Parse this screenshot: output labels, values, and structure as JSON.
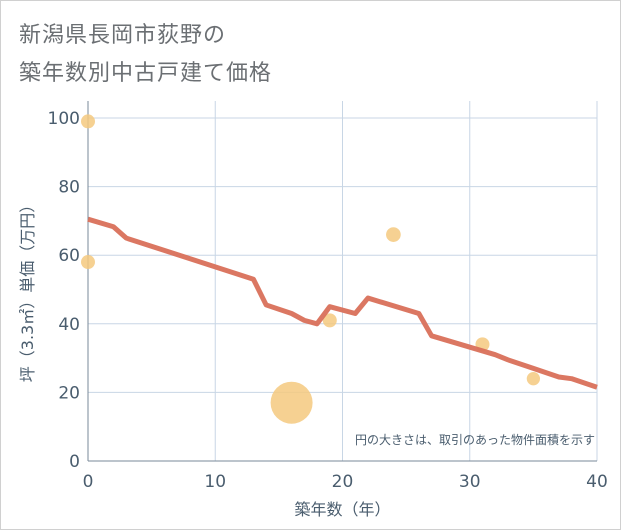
{
  "chart_data": {
    "type": "scatter",
    "title": [
      "新潟県長岡市荻野の",
      "築年数別中古戸建て価格"
    ],
    "xlabel": "築年数（年）",
    "ylabel": "坪（3.3㎡）単価（万円）",
    "xlim": [
      0,
      40
    ],
    "ylim": [
      0,
      100
    ],
    "xticks": [
      0,
      10,
      20,
      30,
      40
    ],
    "yticks": [
      0,
      20,
      40,
      60,
      80,
      100
    ],
    "grid": true,
    "annotation": "円の大きさは、取引のあった物件面積を示す",
    "colors": {
      "line": "#d9705a",
      "points": "#f5c97f",
      "grid": "#c8d6e5"
    },
    "series": [
      {
        "name": "trend",
        "kind": "line",
        "x": [
          0,
          2,
          3,
          13,
          14,
          16,
          17,
          18,
          19,
          21,
          22,
          26,
          27,
          32,
          33,
          35,
          37,
          38,
          40
        ],
        "y": [
          70.5,
          68.3,
          65,
          53,
          45.5,
          43,
          41,
          40,
          45,
          43,
          47.5,
          43,
          36.5,
          31,
          29.5,
          27,
          24.5,
          24,
          21.5
        ]
      },
      {
        "name": "transactions",
        "kind": "scatter",
        "x": [
          0,
          0,
          16,
          19,
          24,
          31,
          35
        ],
        "y": [
          99,
          58,
          17,
          41,
          66,
          34,
          24
        ],
        "size": [
          1,
          1,
          9,
          1,
          1.1,
          1,
          0.9
        ]
      }
    ]
  }
}
